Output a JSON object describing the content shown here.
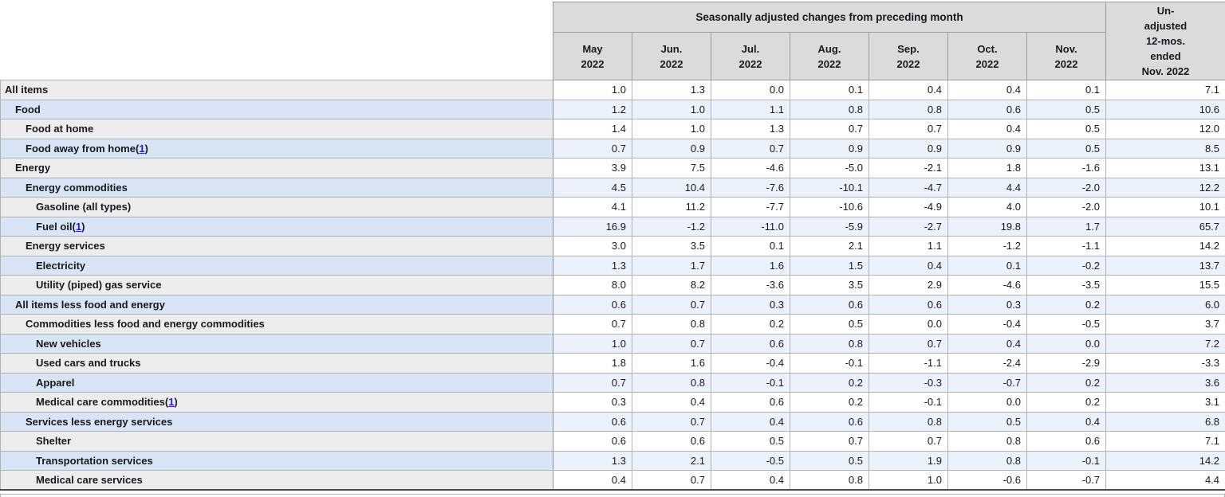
{
  "chart_data": {
    "type": "table",
    "title": "Seasonally adjusted changes from preceding month",
    "columns": [
      "May 2022",
      "Jun. 2022",
      "Jul. 2022",
      "Aug. 2022",
      "Sep. 2022",
      "Oct. 2022",
      "Nov. 2022",
      "Un-adjusted 12-mos. ended Nov. 2022"
    ],
    "rows": [
      {
        "label": "All items",
        "indent": 0,
        "footnote": null,
        "values": [
          "1.0",
          "1.3",
          "0.0",
          "0.1",
          "0.4",
          "0.4",
          "0.1",
          "7.1"
        ]
      },
      {
        "label": "Food",
        "indent": 1,
        "footnote": null,
        "values": [
          "1.2",
          "1.0",
          "1.1",
          "0.8",
          "0.8",
          "0.6",
          "0.5",
          "10.6"
        ]
      },
      {
        "label": "Food at home",
        "indent": 2,
        "footnote": null,
        "values": [
          "1.4",
          "1.0",
          "1.3",
          "0.7",
          "0.7",
          "0.4",
          "0.5",
          "12.0"
        ]
      },
      {
        "label": "Food away from home",
        "indent": 2,
        "footnote": "1",
        "values": [
          "0.7",
          "0.9",
          "0.7",
          "0.9",
          "0.9",
          "0.9",
          "0.5",
          "8.5"
        ]
      },
      {
        "label": "Energy",
        "indent": 1,
        "footnote": null,
        "values": [
          "3.9",
          "7.5",
          "-4.6",
          "-5.0",
          "-2.1",
          "1.8",
          "-1.6",
          "13.1"
        ]
      },
      {
        "label": "Energy commodities",
        "indent": 2,
        "footnote": null,
        "values": [
          "4.5",
          "10.4",
          "-7.6",
          "-10.1",
          "-4.7",
          "4.4",
          "-2.0",
          "12.2"
        ]
      },
      {
        "label": "Gasoline (all types)",
        "indent": 3,
        "footnote": null,
        "values": [
          "4.1",
          "11.2",
          "-7.7",
          "-10.6",
          "-4.9",
          "4.0",
          "-2.0",
          "10.1"
        ]
      },
      {
        "label": "Fuel oil",
        "indent": 3,
        "footnote": "1",
        "values": [
          "16.9",
          "-1.2",
          "-11.0",
          "-5.9",
          "-2.7",
          "19.8",
          "1.7",
          "65.7"
        ]
      },
      {
        "label": "Energy services",
        "indent": 2,
        "footnote": null,
        "values": [
          "3.0",
          "3.5",
          "0.1",
          "2.1",
          "1.1",
          "-1.2",
          "-1.1",
          "14.2"
        ]
      },
      {
        "label": "Electricity",
        "indent": 3,
        "footnote": null,
        "values": [
          "1.3",
          "1.7",
          "1.6",
          "1.5",
          "0.4",
          "0.1",
          "-0.2",
          "13.7"
        ]
      },
      {
        "label": "Utility (piped) gas service",
        "indent": 3,
        "footnote": null,
        "values": [
          "8.0",
          "8.2",
          "-3.6",
          "3.5",
          "2.9",
          "-4.6",
          "-3.5",
          "15.5"
        ]
      },
      {
        "label": "All items less food and energy",
        "indent": 1,
        "footnote": null,
        "values": [
          "0.6",
          "0.7",
          "0.3",
          "0.6",
          "0.6",
          "0.3",
          "0.2",
          "6.0"
        ]
      },
      {
        "label": "Commodities less food and energy commodities",
        "indent": 2,
        "footnote": null,
        "values": [
          "0.7",
          "0.8",
          "0.2",
          "0.5",
          "0.0",
          "-0.4",
          "-0.5",
          "3.7"
        ]
      },
      {
        "label": "New vehicles",
        "indent": 3,
        "footnote": null,
        "values": [
          "1.0",
          "0.7",
          "0.6",
          "0.8",
          "0.7",
          "0.4",
          "0.0",
          "7.2"
        ]
      },
      {
        "label": "Used cars and trucks",
        "indent": 3,
        "footnote": null,
        "values": [
          "1.8",
          "1.6",
          "-0.4",
          "-0.1",
          "-1.1",
          "-2.4",
          "-2.9",
          "-3.3"
        ]
      },
      {
        "label": "Apparel",
        "indent": 3,
        "footnote": null,
        "values": [
          "0.7",
          "0.8",
          "-0.1",
          "0.2",
          "-0.3",
          "-0.7",
          "0.2",
          "3.6"
        ]
      },
      {
        "label": "Medical care commodities",
        "indent": 3,
        "footnote": "1",
        "values": [
          "0.3",
          "0.4",
          "0.6",
          "0.2",
          "-0.1",
          "0.0",
          "0.2",
          "3.1"
        ]
      },
      {
        "label": "Services less energy services",
        "indent": 2,
        "footnote": null,
        "values": [
          "0.6",
          "0.7",
          "0.4",
          "0.6",
          "0.8",
          "0.5",
          "0.4",
          "6.8"
        ]
      },
      {
        "label": "Shelter",
        "indent": 3,
        "footnote": null,
        "values": [
          "0.6",
          "0.6",
          "0.5",
          "0.7",
          "0.7",
          "0.8",
          "0.6",
          "7.1"
        ]
      },
      {
        "label": "Transportation services",
        "indent": 3,
        "footnote": null,
        "values": [
          "1.3",
          "2.1",
          "-0.5",
          "0.5",
          "1.9",
          "0.8",
          "-0.1",
          "14.2"
        ]
      },
      {
        "label": "Medical care services",
        "indent": 3,
        "footnote": null,
        "values": [
          "0.4",
          "0.7",
          "0.4",
          "0.8",
          "1.0",
          "-0.6",
          "-0.7",
          "4.4"
        ]
      }
    ],
    "layout": {
      "striping": "alternating gray/blue rows",
      "values_alignment": "right",
      "grid": true
    }
  },
  "header": {
    "banner": "Seasonally adjusted changes from preceding month",
    "months": [
      {
        "month": "May",
        "year": "2022"
      },
      {
        "month": "Jun.",
        "year": "2022"
      },
      {
        "month": "Jul.",
        "year": "2022"
      },
      {
        "month": "Aug.",
        "year": "2022"
      },
      {
        "month": "Sep.",
        "year": "2022"
      },
      {
        "month": "Oct.",
        "year": "2022"
      },
      {
        "month": "Nov.",
        "year": "2022"
      }
    ],
    "unadjusted_lines": [
      "Un-",
      "adjusted",
      "12-mos.",
      "ended",
      "Nov. 2022"
    ]
  },
  "colors": {
    "header_bg": "#dbdbdb",
    "stripe_gray_label": "#ededed",
    "stripe_gray_value": "#ffffff",
    "stripe_blue_label": "#d8e5f6",
    "stripe_blue_value": "#ecf2fb",
    "border": "#b2b2b2",
    "footnote_link": "#2222cc"
  }
}
